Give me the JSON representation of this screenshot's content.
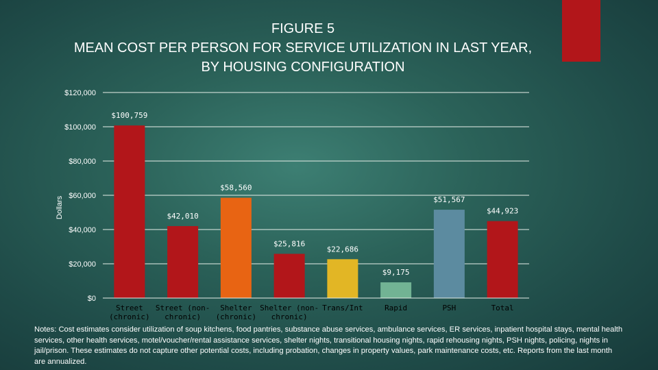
{
  "slide": {
    "accent_color": "#b2161a",
    "title_lines": [
      "FIGURE 5",
      "MEAN COST PER PERSON FOR SERVICE UTILIZATION IN LAST YEAR,",
      "BY HOUSING CONFIGURATION"
    ],
    "notes": "Notes: Cost estimates consider utilization of soup kitchens, food pantries, substance abuse services, ambulance services, ER services, inpatient hospital stays, mental health services, other health services, motel/voucher/rental assistance services, shelter nights, transitional housing nights, rapid rehousing nights, PSH nights, policing, nights in jail/prison. These estimates do not capture other potential costs, including probation, changes in property values, park maintenance costs, etc. Reports from the last month are annualized."
  },
  "chart_data": {
    "type": "bar",
    "title": "",
    "xlabel": "",
    "ylabel": "Dollars",
    "ylim": [
      0,
      120000
    ],
    "yticks": [
      {
        "value": 0,
        "label": "$0"
      },
      {
        "value": 20000,
        "label": "$20,000"
      },
      {
        "value": 40000,
        "label": "$40,000"
      },
      {
        "value": 60000,
        "label": "$60,000"
      },
      {
        "value": 80000,
        "label": "$80,000"
      },
      {
        "value": 100000,
        "label": "$100,000"
      },
      {
        "value": 120000,
        "label": "$120,000"
      }
    ],
    "grid": true,
    "legend": "none",
    "categories": [
      [
        "Street",
        "(chronic)"
      ],
      [
        "Street (non-",
        "chronic)"
      ],
      [
        "Shelter",
        "(chronic)"
      ],
      [
        "Shelter (non-",
        "chronic)"
      ],
      [
        "Trans/Int"
      ],
      [
        "Rapid"
      ],
      [
        "PSH"
      ],
      [
        "Total"
      ]
    ],
    "values": [
      100759,
      42010,
      58560,
      25816,
      22686,
      9175,
      51567,
      44923
    ],
    "data_labels": [
      "$100,759",
      "$42,010",
      "$58,560",
      "$25,816",
      "$22,686",
      "$9,175",
      "$51,567",
      "$44,923"
    ],
    "colors": [
      "#b2161a",
      "#b2161a",
      "#e86413",
      "#b2161a",
      "#e2b625",
      "#72b394",
      "#5c8ba0",
      "#b2161a"
    ]
  }
}
